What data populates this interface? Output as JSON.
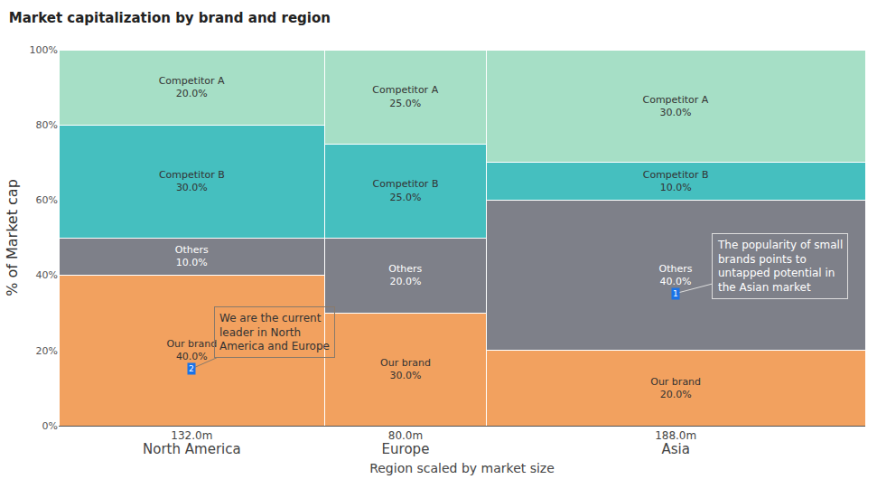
{
  "chart_data": {
    "type": "marimekko",
    "title": "Market capitalization by brand and region",
    "x_label": "Region scaled by market size",
    "y_label": "% of Market cap",
    "categories": [
      "North America",
      "Europe",
      "Asia"
    ],
    "widths": [
      132,
      80,
      188
    ],
    "width_labels": [
      "132.0m",
      "80.0m",
      "188.0m"
    ],
    "stacked": true,
    "data_labels": true,
    "grid": false,
    "ylim": [
      0,
      100
    ],
    "yticks": [
      {
        "value": 0,
        "label": "0%"
      },
      {
        "value": 20,
        "label": "20%"
      },
      {
        "value": 40,
        "label": "40%"
      },
      {
        "value": 60,
        "label": "60%"
      },
      {
        "value": 80,
        "label": "80%"
      },
      {
        "value": 100,
        "label": "100%"
      }
    ],
    "series": [
      {
        "name": "Our brand",
        "color": "#f2a15f",
        "values": [
          40,
          30,
          20
        ],
        "value_labels": [
          "40.0%",
          "30.0%",
          "20.0%"
        ]
      },
      {
        "name": "Others",
        "color": "#7e8089",
        "values": [
          10,
          20,
          40
        ],
        "value_labels": [
          "10.0%",
          "20.0%",
          "40.0%"
        ]
      },
      {
        "name": "Competitor B",
        "color": "#45bfbf",
        "values": [
          30,
          25,
          10
        ],
        "value_labels": [
          "30.0%",
          "25.0%",
          "10.0%"
        ]
      },
      {
        "name": "Competitor A",
        "color": "#a6dfc6",
        "values": [
          20,
          25,
          30
        ],
        "value_labels": [
          "20.0%",
          "25.0%",
          "30.0%"
        ]
      }
    ],
    "annotations": [
      {
        "label": "1",
        "category": "Asia",
        "series": "Others",
        "text": "The popularity of small brands points to untapped potential in the Asian market"
      },
      {
        "label": "2",
        "category": "North America",
        "series": "Our brand",
        "text": "We are the current leader in North America and Europe"
      }
    ]
  }
}
